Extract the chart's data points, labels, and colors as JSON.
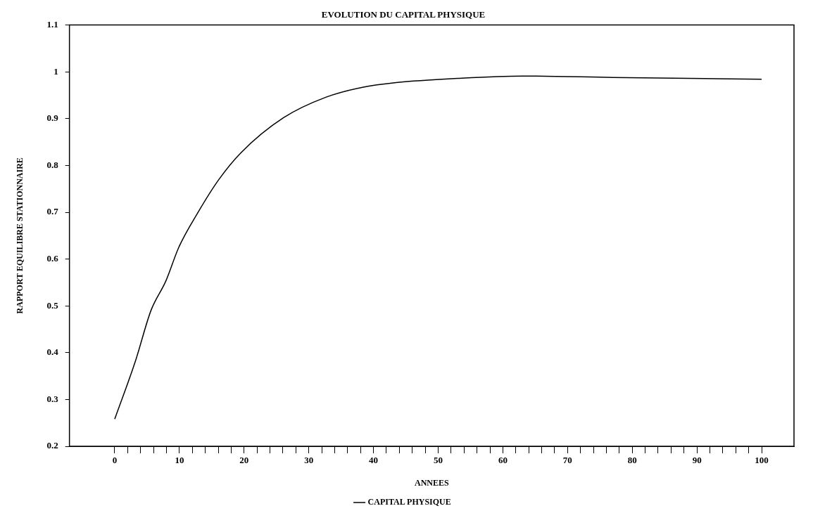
{
  "chart_data": {
    "type": "line",
    "title": "EVOLUTION DU CAPITAL PHYSIQUE",
    "xlabel": "ANNEES",
    "ylabel": "RAPPORT EQUILIBRE STATIONNAIRE",
    "series": [
      {
        "name": "CAPITAL PHYSIQUE",
        "color": "#000000",
        "x": [
          0,
          3.2,
          5.6,
          7.9,
          9.9,
          12.8,
          16.1,
          19.5,
          26.1,
          32.7,
          38.3,
          43.5,
          53,
          63,
          77,
          100
        ],
        "values": [
          0.258,
          0.382,
          0.49,
          0.553,
          0.625,
          0.698,
          0.77,
          0.827,
          0.902,
          0.946,
          0.967,
          0.977,
          0.986,
          0.991,
          0.988,
          0.984
        ]
      }
    ],
    "xlim": [
      -7,
      105
    ],
    "ylim": [
      0.2,
      1.1
    ],
    "xticks": [
      0,
      {
        "value": 2,
        "label": null
      },
      {
        "value": 4,
        "label": null
      },
      {
        "value": 6,
        "label": null
      },
      {
        "value": 8,
        "label": null
      },
      10,
      {
        "value": 12,
        "label": null
      },
      {
        "value": 14,
        "label": null
      },
      {
        "value": 16,
        "label": null
      },
      {
        "value": 18,
        "label": null
      },
      20,
      {
        "value": 22,
        "label": null
      },
      {
        "value": 24,
        "label": null
      },
      {
        "value": 26,
        "label": null
      },
      {
        "value": 28,
        "label": null
      },
      30,
      {
        "value": 32,
        "label": null
      },
      {
        "value": 34,
        "label": null
      },
      {
        "value": 36,
        "label": null
      },
      {
        "value": 38,
        "label": null
      },
      40,
      {
        "value": 42,
        "label": null
      },
      {
        "value": 44,
        "label": null
      },
      {
        "value": 46,
        "label": null
      },
      {
        "value": 48,
        "label": null
      },
      50,
      {
        "value": 52,
        "label": null
      },
      {
        "value": 54,
        "label": null
      },
      {
        "value": 56,
        "label": null
      },
      {
        "value": 58,
        "label": null
      },
      60,
      {
        "value": 62,
        "label": null
      },
      {
        "value": 64,
        "label": null
      },
      {
        "value": 66,
        "label": null
      },
      {
        "value": 68,
        "label": null
      },
      70,
      {
        "value": 72,
        "label": null
      },
      {
        "value": 74,
        "label": null
      },
      {
        "value": 76,
        "label": null
      },
      {
        "value": 78,
        "label": null
      },
      80,
      {
        "value": 82,
        "label": null
      },
      {
        "value": 84,
        "label": null
      },
      {
        "value": 86,
        "label": null
      },
      {
        "value": 88,
        "label": null
      },
      90,
      {
        "value": 92,
        "label": null
      },
      {
        "value": 94,
        "label": null
      },
      {
        "value": 96,
        "label": null
      },
      {
        "value": 98,
        "label": null
      },
      100
    ],
    "yticks": [
      0.2,
      0.3,
      0.4,
      0.5,
      0.6,
      0.7,
      0.8,
      0.9,
      1,
      1.1
    ],
    "grid": false,
    "legend": "bottom",
    "marker": "none",
    "line_style": "solid"
  }
}
